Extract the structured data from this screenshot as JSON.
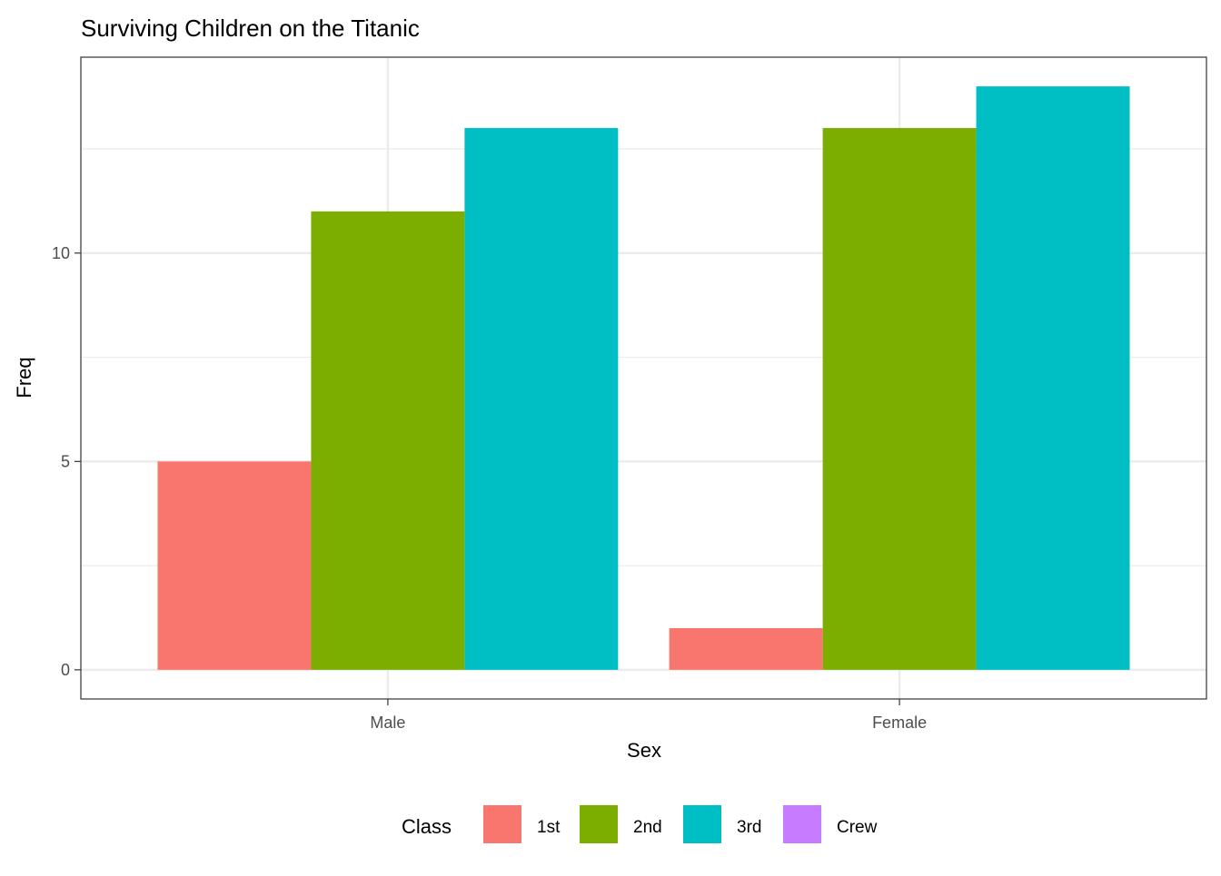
{
  "chart_data": {
    "type": "bar",
    "title": "Surviving Children on the Titanic",
    "xlabel": "Sex",
    "ylabel": "Freq",
    "categories": [
      "Male",
      "Female"
    ],
    "series": [
      {
        "name": "1st",
        "color": "#F8766D",
        "values": [
          5,
          1
        ]
      },
      {
        "name": "2nd",
        "color": "#7CAE00",
        "values": [
          11,
          13
        ]
      },
      {
        "name": "3rd",
        "color": "#00BFC4",
        "values": [
          13,
          14
        ]
      },
      {
        "name": "Crew",
        "color": "#C77CFF",
        "values": [
          0,
          0
        ]
      }
    ],
    "ylim": [
      -0.7,
      14.7
    ],
    "yticks": [
      0,
      5,
      10
    ],
    "ytick_labels": [
      "0",
      "5",
      "10"
    ],
    "grid": true,
    "legend": {
      "title": "Class",
      "position": "bottom",
      "labels": [
        "1st",
        "2nd",
        "3rd",
        "Crew"
      ]
    }
  }
}
